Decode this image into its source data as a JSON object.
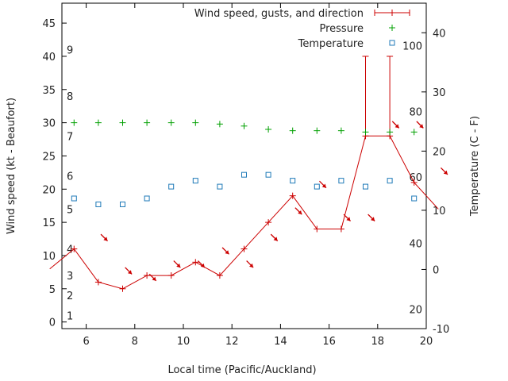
{
  "chart_data": {
    "type": "line",
    "title": "",
    "xlabel": "Local time (Pacific/Auckland)",
    "ylabel": "Wind speed (kt - Beaufort)",
    "y2label": "Temperature (C - F)",
    "xlim": [
      5,
      20
    ],
    "ylim": [
      -1,
      48
    ],
    "y2lim": [
      -10,
      45
    ],
    "grid": false,
    "legend_position": "top-right",
    "x_ticks": [
      6,
      8,
      10,
      12,
      14,
      16,
      18,
      20
    ],
    "y_ticks": [
      0,
      5,
      10,
      15,
      20,
      25,
      30,
      35,
      40,
      45
    ],
    "y2_ticks": [
      -10,
      0,
      10,
      20,
      30,
      40
    ],
    "beaufort_labels": [
      {
        "label": "1",
        "y": 1
      },
      {
        "label": "2",
        "y": 4
      },
      {
        "label": "3",
        "y": 7
      },
      {
        "label": "4",
        "y": 11
      },
      {
        "label": "5",
        "y": 17
      },
      {
        "label": "6",
        "y": 22
      },
      {
        "label": "7",
        "y": 28
      },
      {
        "label": "8",
        "y": 34
      },
      {
        "label": "9",
        "y": 41
      }
    ],
    "fahrenheit_labels": [
      {
        "label": "20",
        "y2": -6.7
      },
      {
        "label": "40",
        "y2": 4.4
      },
      {
        "label": "60",
        "y2": 15.6
      },
      {
        "label": "80",
        "y2": 26.7
      },
      {
        "label": "100",
        "y2": 37.8
      }
    ],
    "series": [
      {
        "name": "Wind speed, gusts, and direction",
        "color": "#cc0000",
        "axis": "left",
        "x": [
          4.5,
          5.5,
          6.5,
          7.5,
          8.5,
          9.5,
          10.5,
          11.5,
          12.5,
          13.5,
          14.5,
          15.5,
          16.5,
          17.5,
          18.5,
          19.5,
          20.5
        ],
        "values": [
          8,
          11,
          6,
          5,
          7,
          7,
          9,
          7,
          11,
          15,
          19,
          14,
          14,
          28,
          28,
          21,
          17
        ],
        "gusts": [
          null,
          null,
          null,
          null,
          null,
          null,
          null,
          null,
          null,
          null,
          null,
          null,
          null,
          40,
          40,
          null,
          null
        ],
        "direction_deg": [
          null,
          315,
          315,
          315,
          315,
          315,
          315,
          315,
          315,
          315,
          315,
          315,
          315,
          315,
          315,
          315,
          null
        ]
      },
      {
        "name": "Pressure",
        "color": "#00a000",
        "axis": "left",
        "x": [
          5.5,
          6.5,
          7.5,
          8.5,
          9.5,
          10.5,
          11.5,
          12.5,
          13.5,
          14.5,
          15.5,
          16.5,
          17.5,
          18.5,
          19.5
        ],
        "values": [
          30,
          30,
          30,
          30,
          30,
          30,
          29.8,
          29.5,
          29,
          28.8,
          28.8,
          28.8,
          28.6,
          28.6,
          28.6
        ]
      },
      {
        "name": "Temperature",
        "color": "#1f7ab8",
        "axis": "right",
        "x": [
          5.5,
          6.5,
          7.5,
          8.5,
          9.5,
          10.5,
          11.5,
          12.5,
          13.5,
          14.5,
          15.5,
          16.5,
          17.5,
          18.5,
          19.5
        ],
        "values": [
          12,
          11,
          11,
          12,
          14,
          15,
          14,
          16,
          16,
          15,
          14,
          15,
          14,
          15,
          12
        ]
      }
    ]
  }
}
